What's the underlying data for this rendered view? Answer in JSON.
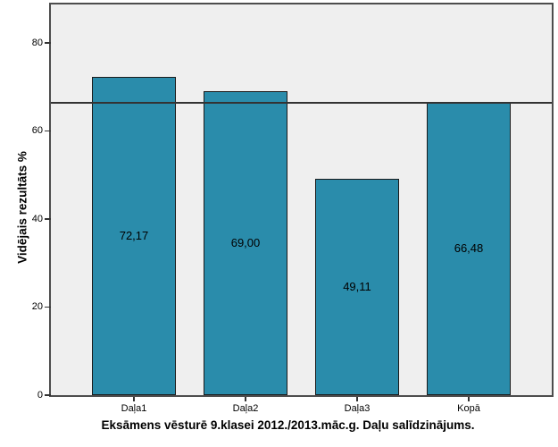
{
  "chart_data": {
    "type": "bar",
    "categories": [
      "Daļa1",
      "Daļa2",
      "Daļa3",
      "Kopā"
    ],
    "values": [
      72.17,
      69.0,
      49.11,
      66.48
    ],
    "bar_value_labels": [
      "72,17",
      "69,00",
      "49,11",
      "66,48"
    ],
    "title": "Eksāmens vēsturē 9.klasei 2012./2013.māc.g. Daļu salīdzinājums.",
    "xlabel": "",
    "ylabel": "Vidējais rezultāts %",
    "ylim": [
      0,
      88.7
    ],
    "yticks": [
      0,
      20,
      40,
      60,
      80
    ],
    "ytick_labels": [
      "0",
      "20",
      "40",
      "60",
      "80"
    ],
    "reference_line": 66.48,
    "grid": false,
    "legend": "none",
    "colors": {
      "bar_fill": "#2A8CAB",
      "bar_border": "#1A1A1A",
      "plot_background": "#EFEFEF",
      "frame_border": "#4D4D4D",
      "reference_line": "#333333",
      "text": "#000000"
    }
  }
}
